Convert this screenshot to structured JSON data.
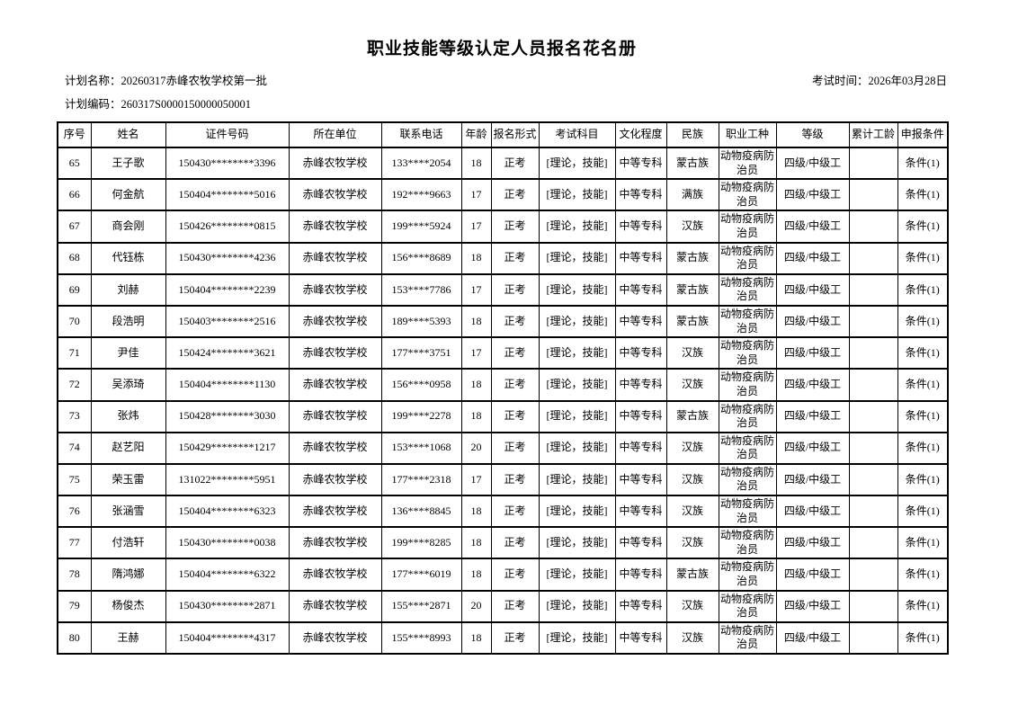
{
  "page": {
    "title": "职业技能等级认定人员报名花名册",
    "plan_name_label": "计划名称：",
    "plan_name_value": "20260317赤峰农牧学校第一批",
    "exam_time_label": "考试时间：",
    "exam_time_value": "2026年03月28日",
    "plan_code_label": "计划编码：",
    "plan_code_value": "260317S0000150000050001"
  },
  "table": {
    "columns": [
      "序号",
      "姓名",
      "证件号码",
      "所在单位",
      "联系电话",
      "年龄",
      "报名形式",
      "考试科目",
      "文化程度",
      "民族",
      "职业工种",
      "等级",
      "累计工龄",
      "申报条件"
    ],
    "rows": [
      [
        "65",
        "王子歌",
        "150430********3396",
        "赤峰农牧学校",
        "133****2054",
        "18",
        "正考",
        "[理论，技能]",
        "中等专科",
        "蒙古族",
        "动物疫病防治员",
        "四级/中级工",
        "",
        "条件(1)"
      ],
      [
        "66",
        "何金航",
        "150404********5016",
        "赤峰农牧学校",
        "192****9663",
        "17",
        "正考",
        "[理论，技能]",
        "中等专科",
        "满族",
        "动物疫病防治员",
        "四级/中级工",
        "",
        "条件(1)"
      ],
      [
        "67",
        "商会刚",
        "150426********0815",
        "赤峰农牧学校",
        "199****5924",
        "17",
        "正考",
        "[理论，技能]",
        "中等专科",
        "汉族",
        "动物疫病防治员",
        "四级/中级工",
        "",
        "条件(1)"
      ],
      [
        "68",
        "代钰栋",
        "150430********4236",
        "赤峰农牧学校",
        "156****8689",
        "18",
        "正考",
        "[理论，技能]",
        "中等专科",
        "蒙古族",
        "动物疫病防治员",
        "四级/中级工",
        "",
        "条件(1)"
      ],
      [
        "69",
        "刘赫",
        "150404********2239",
        "赤峰农牧学校",
        "153****7786",
        "17",
        "正考",
        "[理论，技能]",
        "中等专科",
        "蒙古族",
        "动物疫病防治员",
        "四级/中级工",
        "",
        "条件(1)"
      ],
      [
        "70",
        "段浩明",
        "150403********2516",
        "赤峰农牧学校",
        "189****5393",
        "18",
        "正考",
        "[理论，技能]",
        "中等专科",
        "蒙古族",
        "动物疫病防治员",
        "四级/中级工",
        "",
        "条件(1)"
      ],
      [
        "71",
        "尹佳",
        "150424********3621",
        "赤峰农牧学校",
        "177****3751",
        "17",
        "正考",
        "[理论，技能]",
        "中等专科",
        "汉族",
        "动物疫病防治员",
        "四级/中级工",
        "",
        "条件(1)"
      ],
      [
        "72",
        "吴添琦",
        "150404********1130",
        "赤峰农牧学校",
        "156****0958",
        "18",
        "正考",
        "[理论，技能]",
        "中等专科",
        "汉族",
        "动物疫病防治员",
        "四级/中级工",
        "",
        "条件(1)"
      ],
      [
        "73",
        "张炜",
        "150428********3030",
        "赤峰农牧学校",
        "199****2278",
        "18",
        "正考",
        "[理论，技能]",
        "中等专科",
        "蒙古族",
        "动物疫病防治员",
        "四级/中级工",
        "",
        "条件(1)"
      ],
      [
        "74",
        "赵艺阳",
        "150429********1217",
        "赤峰农牧学校",
        "153****1068",
        "20",
        "正考",
        "[理论，技能]",
        "中等专科",
        "汉族",
        "动物疫病防治员",
        "四级/中级工",
        "",
        "条件(1)"
      ],
      [
        "75",
        "荣玉雷",
        "131022********5951",
        "赤峰农牧学校",
        "177****2318",
        "17",
        "正考",
        "[理论，技能]",
        "中等专科",
        "汉族",
        "动物疫病防治员",
        "四级/中级工",
        "",
        "条件(1)"
      ],
      [
        "76",
        "张涵雪",
        "150404********6323",
        "赤峰农牧学校",
        "136****8845",
        "18",
        "正考",
        "[理论，技能]",
        "中等专科",
        "汉族",
        "动物疫病防治员",
        "四级/中级工",
        "",
        "条件(1)"
      ],
      [
        "77",
        "付浩轩",
        "150430********0038",
        "赤峰农牧学校",
        "199****8285",
        "18",
        "正考",
        "[理论，技能]",
        "中等专科",
        "汉族",
        "动物疫病防治员",
        "四级/中级工",
        "",
        "条件(1)"
      ],
      [
        "78",
        "隋鸿娜",
        "150404********6322",
        "赤峰农牧学校",
        "177****6019",
        "18",
        "正考",
        "[理论，技能]",
        "中等专科",
        "蒙古族",
        "动物疫病防治员",
        "四级/中级工",
        "",
        "条件(1)"
      ],
      [
        "79",
        "杨俊杰",
        "150430********2871",
        "赤峰农牧学校",
        "155****2871",
        "20",
        "正考",
        "[理论，技能]",
        "中等专科",
        "汉族",
        "动物疫病防治员",
        "四级/中级工",
        "",
        "条件(1)"
      ],
      [
        "80",
        "王赫",
        "150404********4317",
        "赤峰农牧学校",
        "155****8993",
        "18",
        "正考",
        "[理论，技能]",
        "中等专科",
        "汉族",
        "动物疫病防治员",
        "四级/中级工",
        "",
        "条件(1)"
      ]
    ]
  }
}
